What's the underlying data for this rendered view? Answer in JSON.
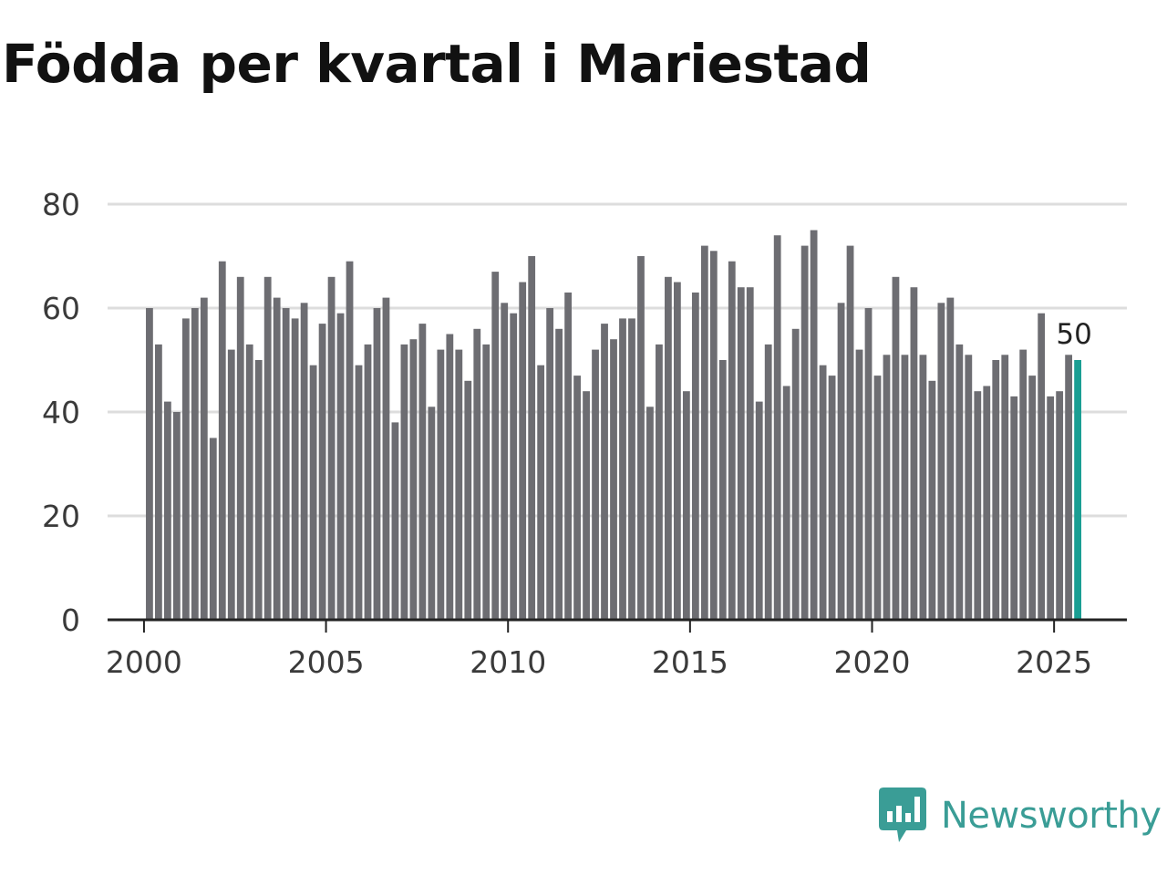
{
  "title": "Födda per kvartal i Mariestad",
  "brand": {
    "name": "Newsworthy",
    "icon": "newsworthy-logo-icon",
    "color": "#3a9d96"
  },
  "colors": {
    "bar": "#6d6d72",
    "highlight": "#1a9e93",
    "grid": "#dddddd",
    "axis": "#222222"
  },
  "chart_data": {
    "type": "bar",
    "title": "Födda per kvartal i Mariestad",
    "xlabel": "",
    "ylabel": "",
    "ylim": [
      0,
      80
    ],
    "yticks": [
      0,
      20,
      40,
      60,
      80
    ],
    "xlim": [
      1999.0,
      2027.0
    ],
    "xticks": [
      2000,
      2005,
      2010,
      2015,
      2020,
      2025
    ],
    "grid": true,
    "start_year": 2000,
    "start_quarter": 1,
    "values": [
      60,
      53,
      42,
      40,
      58,
      60,
      62,
      35,
      69,
      52,
      66,
      53,
      50,
      66,
      62,
      60,
      58,
      61,
      49,
      57,
      66,
      59,
      69,
      49,
      53,
      60,
      62,
      38,
      53,
      54,
      57,
      41,
      52,
      55,
      52,
      46,
      56,
      53,
      67,
      61,
      59,
      65,
      70,
      49,
      60,
      56,
      63,
      47,
      44,
      52,
      57,
      54,
      58,
      58,
      70,
      41,
      53,
      66,
      65,
      44,
      63,
      72,
      71,
      50,
      69,
      64,
      64,
      42,
      53,
      74,
      45,
      56,
      72,
      75,
      49,
      47,
      61,
      72,
      52,
      60,
      47,
      51,
      66,
      51,
      64,
      51,
      46,
      61,
      62,
      53,
      51,
      44,
      45,
      50,
      51,
      43,
      52,
      47,
      59,
      43,
      44,
      51,
      50
    ],
    "highlight_last": true,
    "last_value_label": "50"
  }
}
